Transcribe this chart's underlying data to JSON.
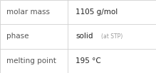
{
  "rows": [
    {
      "label": "molar mass",
      "value_main": "1105 g/mol",
      "value_suffix": null
    },
    {
      "label": "phase",
      "value_main": "solid",
      "value_suffix": "(at STP)"
    },
    {
      "label": "melting point",
      "value_main": "195 °C",
      "value_suffix": null
    }
  ],
  "col_split": 0.435,
  "bg_color": "#ffffff",
  "border_color": "#d0d0d0",
  "label_color": "#555555",
  "value_color": "#222222",
  "suffix_color": "#999999",
  "label_fontsize": 7.5,
  "value_fontsize": 7.5,
  "suffix_fontsize": 5.5,
  "label_fontstyle": "normal",
  "value_fontweight": "normal"
}
